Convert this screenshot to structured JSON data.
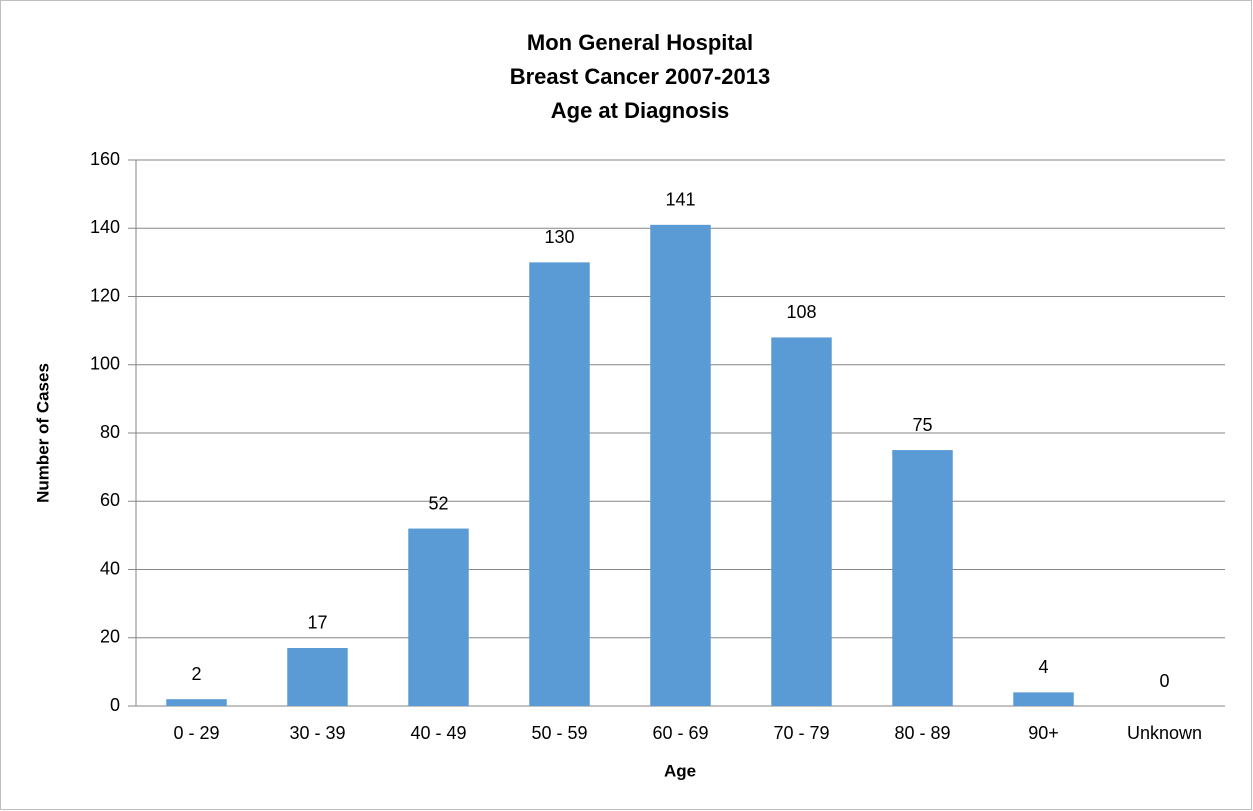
{
  "chart_data": {
    "type": "bar",
    "title": [
      "Mon General Hospital",
      "Breast Cancer 2007-2013",
      "Age at Diagnosis"
    ],
    "x_label": "Age",
    "y_label": "Number of Cases",
    "categories": [
      "0 - 29",
      "30 - 39",
      "40 - 49",
      "50 - 59",
      "60 - 69",
      "70 - 79",
      "80 - 89",
      "90+",
      "Unknown"
    ],
    "values": [
      2,
      17,
      52,
      130,
      141,
      108,
      75,
      4,
      0
    ],
    "color": "#5b9bd5",
    "ylim": [
      0,
      160
    ],
    "yticks": [
      0,
      20,
      40,
      60,
      80,
      100,
      120,
      140,
      160
    ],
    "grid": true
  }
}
